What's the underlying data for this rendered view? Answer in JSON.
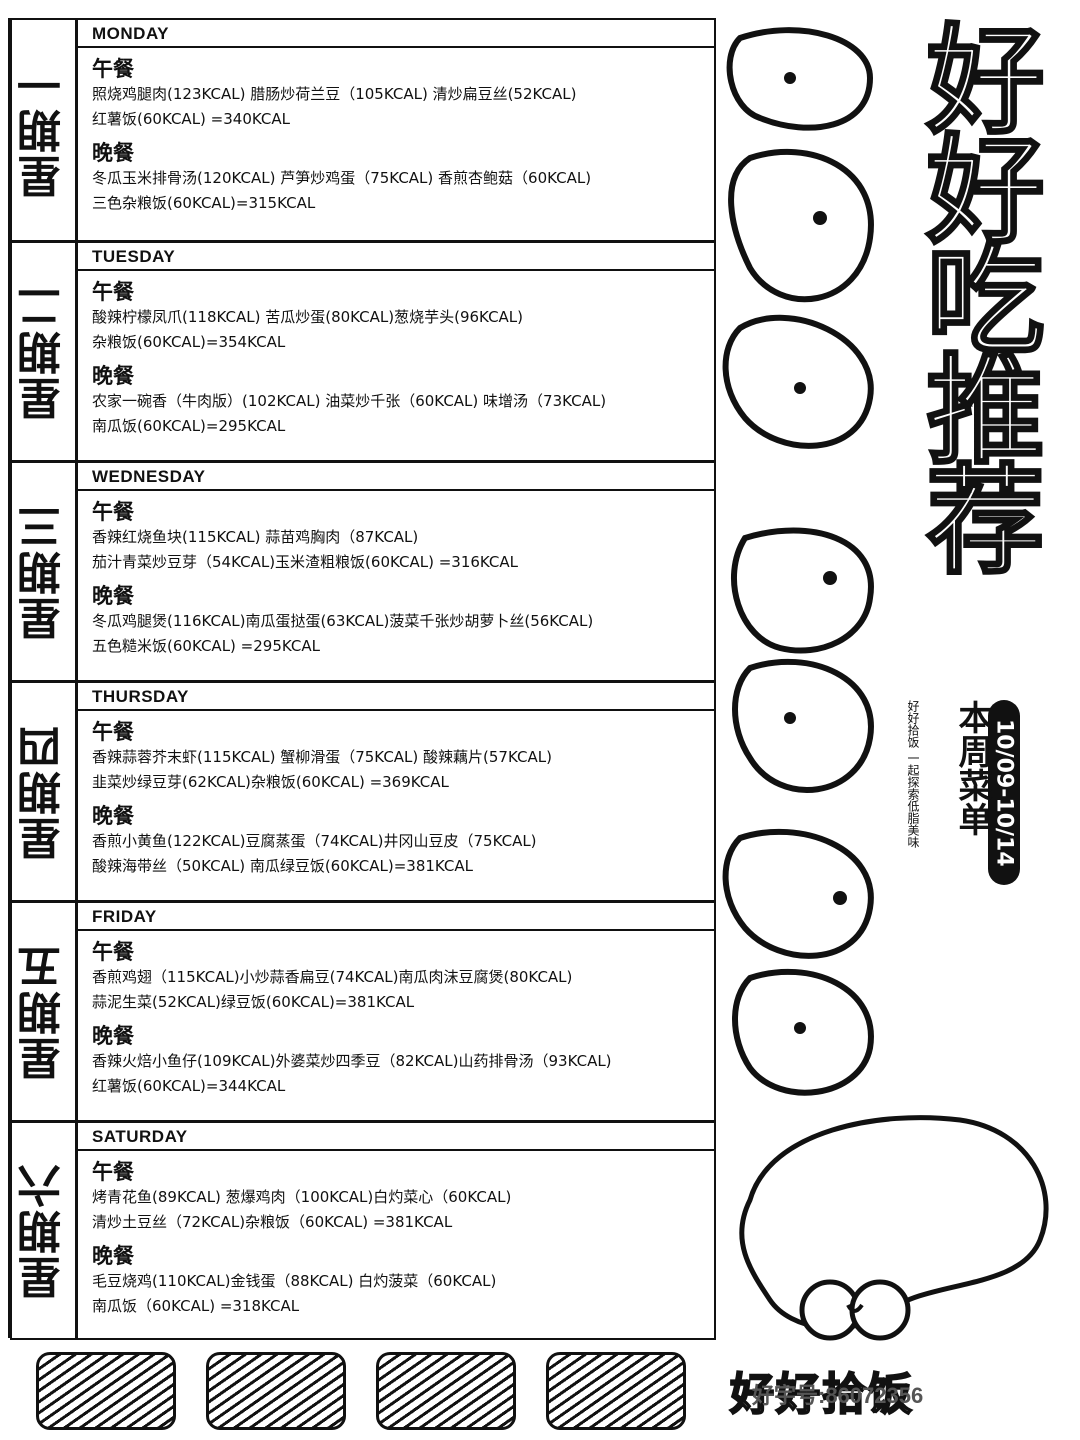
{
  "days": [
    {
      "cn": "星期一",
      "en": "MONDAY",
      "lunch_title": "午餐",
      "lunch": [
        "照烧鸡腿肉(123KCAL) 腊肠炒荷兰豆（105KCAL) 清炒扁豆丝(52KCAL)",
        "红薯饭(60KCAL) =340KCAL"
      ],
      "dinner_title": "晚餐",
      "dinner": [
        "冬瓜玉米排骨汤(120KCAL) 芦笋炒鸡蛋（75KCAL) 香煎杏鲍菇（60KCAL)",
        "三色杂粮饭(60KCAL)=315KCAL"
      ]
    },
    {
      "cn": "星期二",
      "en": "TUESDAY",
      "lunch_title": "午餐",
      "lunch": [
        "酸辣柠檬凤爪(118KCAL) 苦瓜炒蛋(80KCAL)葱烧芋头(96KCAL)",
        "杂粮饭(60KCAL)=354KCAL"
      ],
      "dinner_title": "晚餐",
      "dinner": [
        "农家一碗香（牛肉版）(102KCAL) 油菜炒千张（60KCAL) 味增汤（73KCAL)",
        "南瓜饭(60KCAL)=295KCAL"
      ]
    },
    {
      "cn": "星期三",
      "en": "WEDNESDAY",
      "lunch_title": "午餐",
      "lunch": [
        "香辣红烧鱼块(115KCAL) 蒜苗鸡胸肉（87KCAL)",
        "茄汁青菜炒豆芽（54KCAL)玉米渣粗粮饭(60KCAL) =316KCAL"
      ],
      "dinner_title": "晚餐",
      "dinner": [
        "冬瓜鸡腿煲(116KCAL)南瓜蛋挞蛋(63KCAL)菠菜千张炒胡萝卜丝(56KCAL)",
        "五色糙米饭(60KCAL) =295KCAL"
      ]
    },
    {
      "cn": "星期四",
      "en": "THURSDAY",
      "lunch_title": "午餐",
      "lunch": [
        "香辣蒜蓉芥末虾(115KCAL) 蟹柳滑蛋（75KCAL) 酸辣藕片(57KCAL)",
        "韭菜炒绿豆芽(62KCAL)杂粮饭(60KCAL) =369KCAL"
      ],
      "dinner_title": "晚餐",
      "dinner": [
        "香煎小黄鱼(122KCAL)豆腐蒸蛋（74KCAL)井冈山豆皮（75KCAL)",
        "酸辣海带丝（50KCAL) 南瓜绿豆饭(60KCAL)=381KCAL"
      ]
    },
    {
      "cn": "星期五",
      "en": "FRIDAY",
      "lunch_title": "午餐",
      "lunch": [
        "香煎鸡翅（115KCAL)小炒蒜香扁豆(74KCAL)南瓜肉沫豆腐煲(80KCAL)",
        "蒜泥生菜(52KCAL)绿豆饭(60KCAL)=381KCAL"
      ],
      "dinner_title": "晚餐",
      "dinner": [
        "香辣火焙小鱼仔(109KCAL)外婆菜炒四季豆（82KCAL)山药排骨汤（93KCAL)",
        "红薯饭(60KCAL)=344KCAL"
      ]
    },
    {
      "cn": "星期六",
      "en": "SATURDAY",
      "lunch_title": "午餐",
      "lunch": [
        "烤青花鱼(89KCAL) 葱爆鸡肉（100KCAL)白灼菜心（60KCAL)",
        "清炒土豆丝（72KCAL)杂粮饭（60KCAL) =381KCAL"
      ],
      "dinner_title": "晚餐",
      "dinner": [
        "毛豆烧鸡(110KCAL)金钱蛋（88KCAL) 白灼菠菜（60KCAL)",
        "南瓜饭（60KCAL) =318KCAL"
      ]
    }
  ],
  "poster": {
    "title": "好好吃推荐",
    "subtitle": "本周菜单",
    "date_range": "10/09-10/14",
    "slogan": "好好拾饭 一起探索低脂美味",
    "brand": "好好拾饭",
    "wechat": "好宇号:86072356"
  },
  "colors": {
    "ink": "#111111",
    "paper": "#ffffff"
  }
}
